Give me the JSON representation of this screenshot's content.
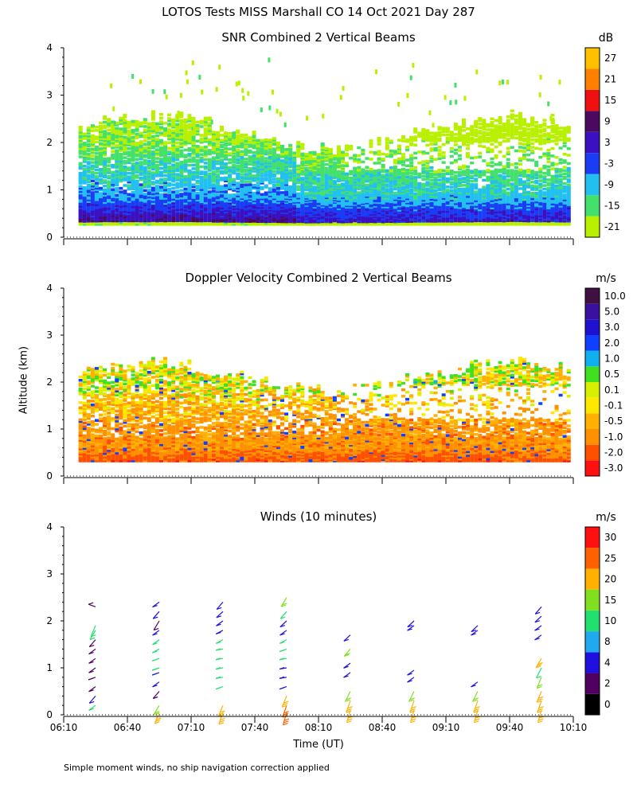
{
  "title": "LOTOS Tests MISS Marshall CO  14 Oct 2021 Day 287",
  "y_axis_label": "Altitude (km)",
  "x_axis_label": "Time (UT)",
  "footnote": "Simple moment winds, no ship navigation correction applied",
  "chart_data": [
    {
      "type": "heatmap",
      "title": "SNR Combined 2 Vertical Beams",
      "xlabel": "Time (UT)",
      "ylabel": "Altitude (km)",
      "x_ticks": [
        "06:10",
        "06:40",
        "07:10",
        "07:40",
        "08:10",
        "08:40",
        "09:10",
        "09:40",
        "10:10"
      ],
      "xlim_minutes": [
        370,
        610
      ],
      "y_ticks": [
        "0",
        "1",
        "2",
        "3",
        "4"
      ],
      "ylim": [
        0,
        4
      ],
      "colorbar": {
        "unit": "dB",
        "labels": [
          "-21",
          "-15",
          "-9",
          "-3",
          "3",
          "9",
          "15",
          "21",
          "27"
        ],
        "colors": [
          "#b8f000",
          "#44e06c",
          "#22c0f0",
          "#1a3cf5",
          "#3a10c0",
          "#4a0a60",
          "#f01010",
          "#ff8000",
          "#ffc000"
        ]
      },
      "approx_profile": {
        "altitude_km": [
          0.3,
          0.5,
          0.8,
          1.2,
          1.6,
          2.0,
          2.3,
          3.0
        ],
        "typical_snr_db": [
          6,
          2,
          -6,
          -10,
          -14,
          -18,
          -20,
          -21
        ]
      }
    },
    {
      "type": "heatmap",
      "title": "Doppler Velocity Combined 2 Vertical Beams",
      "xlabel": "Time (UT)",
      "ylabel": "Altitude (km)",
      "x_ticks": [
        "06:10",
        "06:40",
        "07:10",
        "07:40",
        "08:10",
        "08:40",
        "09:10",
        "09:40",
        "10:10"
      ],
      "xlim_minutes": [
        370,
        610
      ],
      "y_ticks": [
        "0",
        "1",
        "2",
        "3",
        "4"
      ],
      "ylim": [
        0,
        4
      ],
      "colorbar": {
        "unit": "m/s",
        "labels": [
          "-3.0",
          "-2.0",
          "-1.0",
          "-0.5",
          "-0.1",
          "0.1",
          "0.5",
          "1.0",
          "2.0",
          "3.0",
          "5.0",
          "10.0"
        ],
        "colors": [
          "#ff1010",
          "#ff5000",
          "#ff9000",
          "#ffb000",
          "#ffe800",
          "#d8f000",
          "#40e020",
          "#10b0f0",
          "#1040ff",
          "#2010d0",
          "#3a10a0",
          "#401040"
        ]
      },
      "approx_profile": {
        "altitude_km": [
          0.3,
          0.6,
          1.0,
          1.5,
          2.0
        ],
        "typical_velocity_ms": [
          -2.0,
          -1.0,
          -1.0,
          -0.5,
          0.1
        ]
      }
    },
    {
      "type": "scatter",
      "title": "Winds (10 minutes)",
      "xlabel": "Time (UT)",
      "ylabel": "Altitude (km)",
      "x_ticks": [
        "06:10",
        "06:40",
        "07:10",
        "07:40",
        "08:10",
        "08:40",
        "09:10",
        "09:40",
        "10:10"
      ],
      "xlim_minutes": [
        370,
        610
      ],
      "y_ticks": [
        "0",
        "1",
        "2",
        "3",
        "4"
      ],
      "ylim": [
        0,
        4
      ],
      "colorbar": {
        "unit": "m/s",
        "labels": [
          "0",
          "2",
          "4",
          "8",
          "10",
          "15",
          "20",
          "25",
          "30"
        ],
        "colors": [
          "#000000",
          "#500060",
          "#2010e0",
          "#20a8f0",
          "#20e070",
          "#80e020",
          "#ffb000",
          "#ff6000",
          "#ff1010"
        ]
      },
      "profiles_minutes": [
        385,
        415,
        445,
        475,
        505,
        535,
        565,
        595
      ],
      "profiles": [
        {
          "time": "06:25",
          "alt_km": [
            0.2,
            0.4,
            0.6,
            0.8,
            1.0,
            1.2,
            1.4,
            1.6,
            1.8,
            1.9,
            2.3
          ],
          "speed_ms": [
            10,
            4,
            3,
            3,
            3,
            2,
            2,
            2,
            10,
            10,
            3
          ],
          "dir_deg": [
            250,
            240,
            250,
            260,
            250,
            250,
            250,
            240,
            230,
            220,
            280
          ]
        },
        {
          "time": "06:55",
          "alt_km": [
            0.05,
            0.2,
            0.5,
            0.7,
            0.9,
            1.0,
            1.2,
            1.4,
            1.6,
            1.8,
            2.0,
            2.2,
            2.4
          ],
          "speed_ms": [
            20,
            18,
            2,
            4,
            4,
            10,
            10,
            10,
            10,
            4,
            2,
            4,
            4
          ],
          "dir_deg": [
            220,
            230,
            240,
            250,
            260,
            260,
            260,
            255,
            250,
            250,
            230,
            240,
            250
          ]
        },
        {
          "time": "07:25",
          "alt_km": [
            0.05,
            0.2,
            0.6,
            0.8,
            1.0,
            1.2,
            1.4,
            1.6,
            1.8,
            2.0,
            2.2,
            2.4
          ],
          "speed_ms": [
            20,
            20,
            10,
            10,
            10,
            10,
            10,
            10,
            4,
            4,
            4,
            4
          ],
          "dir_deg": [
            215,
            220,
            260,
            265,
            265,
            265,
            265,
            255,
            255,
            250,
            245,
            240
          ]
        },
        {
          "time": "07:55",
          "alt_km": [
            0.05,
            0.2,
            0.4,
            0.6,
            0.8,
            1.0,
            1.2,
            1.4,
            1.6,
            1.8,
            2.0,
            2.2,
            2.5
          ],
          "speed_ms": [
            25,
            25,
            20,
            4,
            4,
            4,
            10,
            10,
            10,
            4,
            4,
            10,
            15
          ],
          "dir_deg": [
            210,
            215,
            220,
            260,
            265,
            265,
            265,
            260,
            255,
            250,
            245,
            240,
            230
          ]
        },
        {
          "time": "08:25",
          "alt_km": [
            0.1,
            0.3,
            0.5,
            0.9,
            1.1,
            1.4,
            1.7
          ],
          "speed_ms": [
            20,
            20,
            15,
            4,
            4,
            15,
            4
          ],
          "dir_deg": [
            210,
            215,
            225,
            250,
            250,
            240,
            245
          ]
        },
        {
          "time": "08:55",
          "alt_km": [
            0.1,
            0.3,
            0.5,
            0.8,
            0.95,
            1.9,
            2.0
          ],
          "speed_ms": [
            20,
            20,
            15,
            4,
            4,
            4,
            4
          ],
          "dir_deg": [
            210,
            215,
            225,
            250,
            250,
            250,
            245
          ]
        },
        {
          "time": "09:25",
          "alt_km": [
            0.1,
            0.3,
            0.5,
            0.7,
            1.8,
            1.9
          ],
          "speed_ms": [
            20,
            20,
            15,
            4,
            4,
            4
          ],
          "dir_deg": [
            210,
            215,
            225,
            250,
            250,
            245
          ]
        },
        {
          "time": "09:55",
          "alt_km": [
            0.1,
            0.3,
            0.5,
            0.8,
            1.0,
            1.2,
            1.7,
            1.9,
            2.1,
            2.3
          ],
          "speed_ms": [
            20,
            20,
            20,
            15,
            10,
            20,
            4,
            4,
            4,
            4
          ],
          "dir_deg": [
            210,
            215,
            220,
            220,
            225,
            230,
            250,
            250,
            245,
            240
          ]
        }
      ]
    }
  ]
}
